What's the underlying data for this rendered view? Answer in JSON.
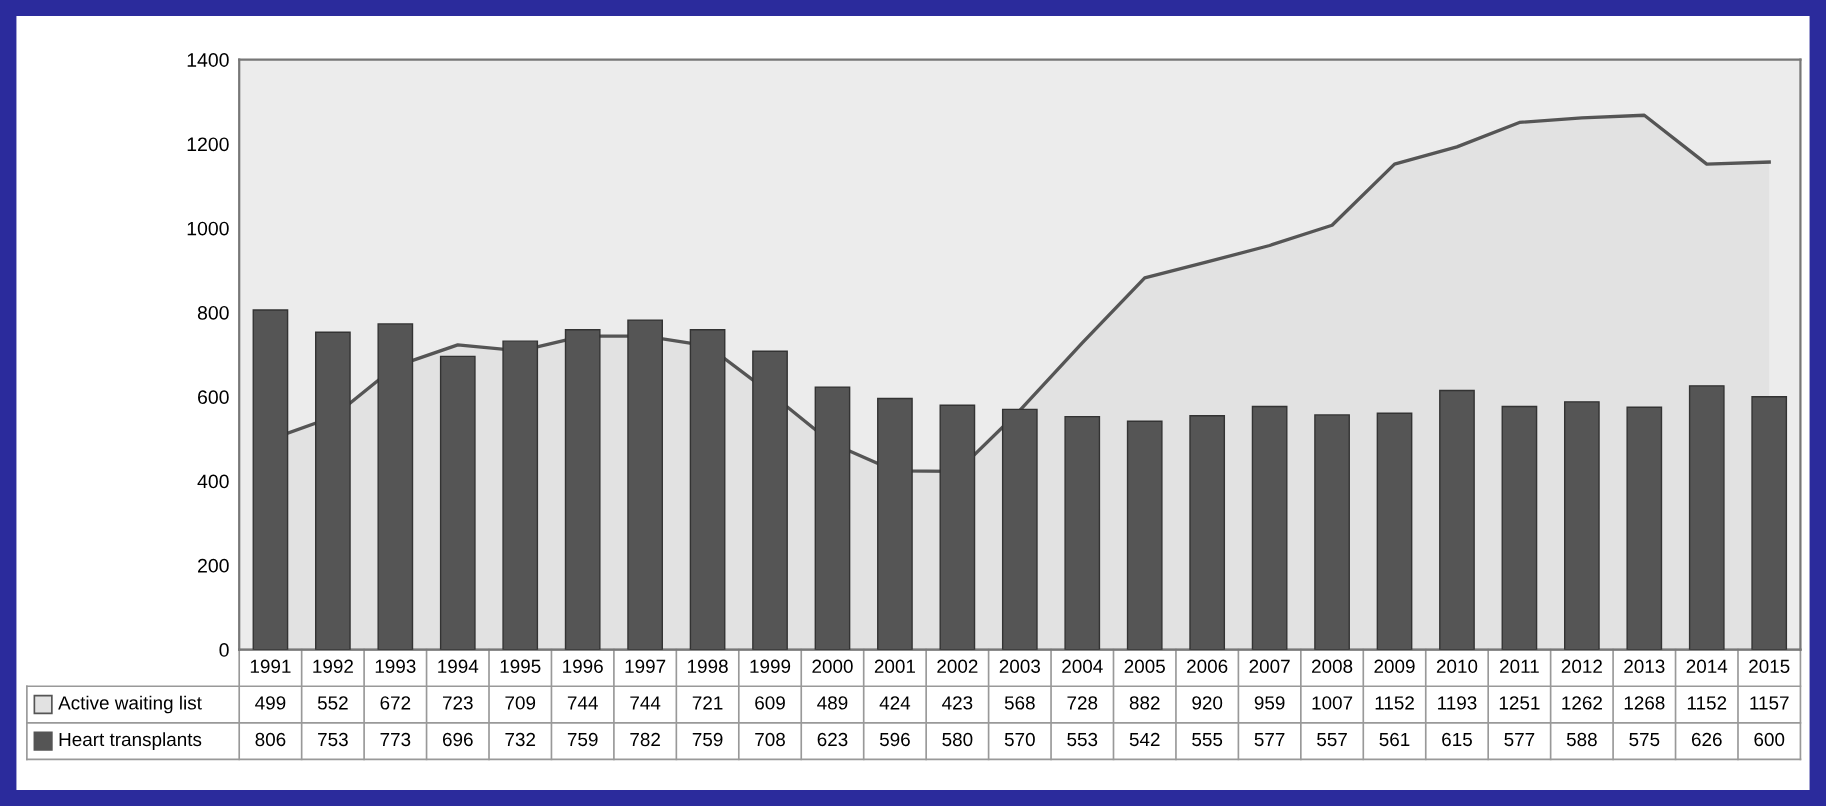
{
  "chart_data": {
    "type": "bar",
    "categories": [
      "1991",
      "1992",
      "1993",
      "1994",
      "1995",
      "1996",
      "1997",
      "1998",
      "1999",
      "2000",
      "2001",
      "2002",
      "2003",
      "2004",
      "2005",
      "2006",
      "2007",
      "2008",
      "2009",
      "2010",
      "2011",
      "2012",
      "2013",
      "2014",
      "2015"
    ],
    "series": [
      {
        "name": "Active waiting list",
        "type": "area",
        "color": "#e2e2e2",
        "values": [
          499,
          552,
          672,
          723,
          709,
          744,
          744,
          721,
          609,
          489,
          424,
          423,
          568,
          728,
          882,
          920,
          959,
          1007,
          1152,
          1193,
          1251,
          1262,
          1268,
          1152,
          1157
        ]
      },
      {
        "name": "Heart transplants",
        "color": "#555555",
        "values": [
          806,
          753,
          773,
          696,
          732,
          759,
          782,
          759,
          708,
          623,
          596,
          580,
          570,
          553,
          542,
          555,
          577,
          557,
          561,
          615,
          577,
          588,
          575,
          626,
          600
        ]
      }
    ],
    "ylim": [
      0,
      1400
    ],
    "yticks": [
      0,
      200,
      400,
      600,
      800,
      1000,
      1200,
      1400
    ],
    "data_labels": true,
    "grid": false,
    "legend": "bottom left"
  }
}
